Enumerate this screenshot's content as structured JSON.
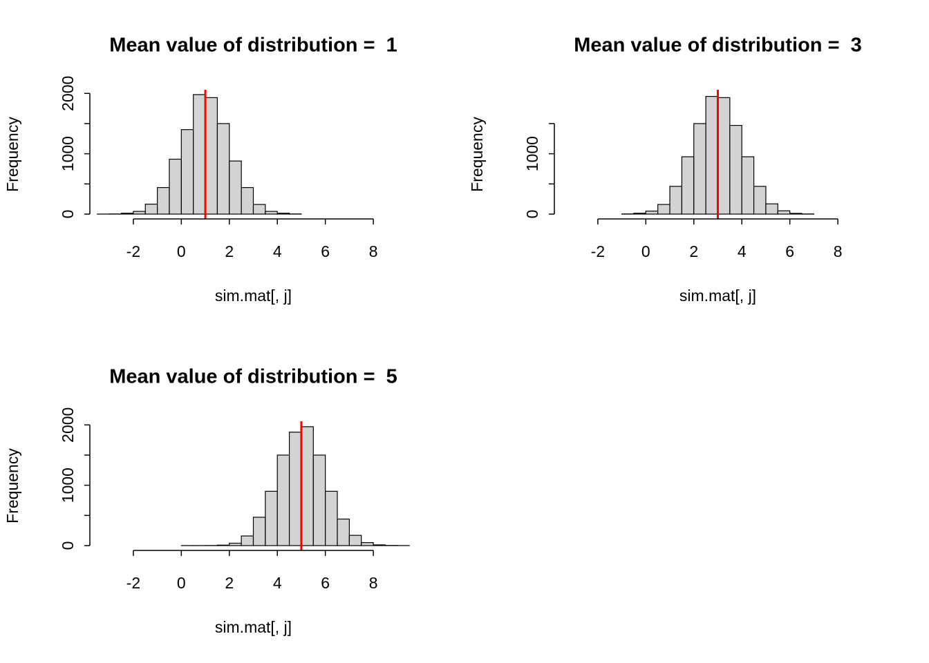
{
  "chart_data": [
    {
      "type": "histogram",
      "title": "Mean value of distribution =  1",
      "xlabel": "sim.mat[, j]",
      "ylabel": "Frequency",
      "bins": [
        -3.5,
        -3,
        -2.5,
        -2,
        -1.5,
        -1,
        -0.5,
        0,
        0.5,
        1,
        1.5,
        2,
        2.5,
        3,
        3.5,
        4,
        4.5,
        5
      ],
      "counts": [
        1,
        3,
        15,
        45,
        165,
        440,
        910,
        1400,
        1980,
        1930,
        1500,
        880,
        440,
        160,
        45,
        15,
        3
      ],
      "color": "#d3d3d3",
      "mean_line": 1,
      "line_color": "#ff0000",
      "xlim": [
        -2.4,
        8.4
      ],
      "xticks": [
        -2,
        0,
        2,
        4,
        6,
        8
      ],
      "ylim": [
        -80,
        2060
      ],
      "yticks": [
        0,
        1000,
        2000
      ],
      "yminor_ticks": [
        500,
        1500
      ]
    },
    {
      "type": "histogram",
      "title": "Mean value of distribution =  3",
      "xlabel": "sim.mat[, j]",
      "ylabel": "Frequency",
      "bins": [
        -1,
        -0.5,
        0,
        0.5,
        1,
        1.5,
        2,
        2.5,
        3,
        3.5,
        4,
        4.5,
        5,
        5.5,
        6,
        6.5,
        7
      ],
      "counts": [
        3,
        15,
        50,
        160,
        460,
        950,
        1500,
        1950,
        1930,
        1470,
        950,
        460,
        170,
        55,
        12,
        3
      ],
      "color": "#d3d3d3",
      "mean_line": 3,
      "line_color": "#ff0000",
      "xlim": [
        -2.4,
        8.4
      ],
      "xticks": [
        -2,
        0,
        2,
        4,
        6,
        8
      ],
      "ylim": [
        -80,
        2060
      ],
      "yticks": [
        0,
        1000
      ],
      "yminor_ticks": [
        500,
        1500
      ]
    },
    {
      "type": "histogram",
      "title": "Mean value of distribution =  5",
      "xlabel": "sim.mat[, j]",
      "ylabel": "Frequency",
      "bins": [
        0,
        0.5,
        1,
        1.5,
        2,
        2.5,
        3,
        3.5,
        4,
        4.5,
        5,
        5.5,
        6,
        6.5,
        7,
        7.5,
        8,
        8.5,
        9,
        9.5
      ],
      "counts": [
        1,
        1,
        2,
        8,
        40,
        160,
        470,
        900,
        1500,
        1880,
        1970,
        1500,
        900,
        440,
        170,
        50,
        12,
        3,
        1
      ],
      "color": "#d3d3d3",
      "mean_line": 5,
      "line_color": "#ff0000",
      "xlim": [
        -2.4,
        8.4
      ],
      "xticks": [
        -2,
        0,
        2,
        4,
        6,
        8
      ],
      "ylim": [
        -80,
        2060
      ],
      "yticks": [
        0,
        1000,
        2000
      ],
      "yminor_ticks": [
        500,
        1500
      ]
    }
  ]
}
